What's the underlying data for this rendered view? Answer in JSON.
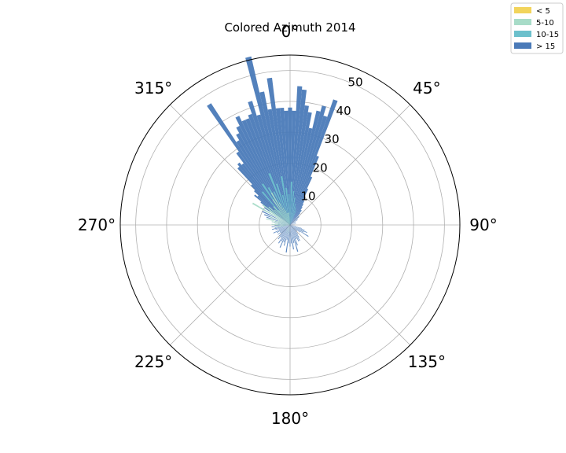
{
  "chart_data": {
    "type": "polar-bar",
    "title": "Colored Azimuth 2014",
    "theta_direction": "clockwise",
    "theta_zero": "N",
    "bin_width_deg": 2,
    "rlim": [
      0,
      55
    ],
    "angle_ticks": [
      {
        "deg": 0,
        "label": "0°"
      },
      {
        "deg": 45,
        "label": "45°"
      },
      {
        "deg": 90,
        "label": "90°"
      },
      {
        "deg": 135,
        "label": "135°"
      },
      {
        "deg": 180,
        "label": "180°"
      },
      {
        "deg": 225,
        "label": "225°"
      },
      {
        "deg": 270,
        "label": "270°"
      },
      {
        "deg": 315,
        "label": "315°"
      }
    ],
    "radial_ticks": [
      10,
      20,
      30,
      40,
      50
    ],
    "grid": true,
    "legend": {
      "placement": "top-right",
      "entries": [
        {
          "label": "< 5",
          "color": "#f2d45c"
        },
        {
          "label": "5-10",
          "color": "#a8dcc8"
        },
        {
          "label": "10-15",
          "color": "#6cc0cc"
        },
        {
          "label": "> 15",
          "color": "#4a7ab8"
        }
      ]
    },
    "series": [
      {
        "name": "5-10",
        "color": "#a8dcc8",
        "points": [
          [
            300,
            14
          ],
          [
            304,
            8
          ],
          [
            306,
            11
          ],
          [
            310,
            9
          ],
          [
            314,
            7
          ],
          [
            318,
            8
          ],
          [
            322,
            6
          ],
          [
            326,
            10
          ],
          [
            330,
            12
          ],
          [
            334,
            8
          ],
          [
            338,
            6
          ],
          [
            342,
            5
          ],
          [
            346,
            4
          ],
          [
            350,
            4
          ],
          [
            354,
            4
          ],
          [
            260,
            4
          ],
          [
            264,
            5
          ],
          [
            268,
            3
          ],
          [
            272,
            6
          ],
          [
            276,
            5
          ],
          [
            280,
            6
          ],
          [
            284,
            8
          ],
          [
            288,
            4
          ],
          [
            292,
            7
          ],
          [
            296,
            5
          ],
          [
            190,
            3
          ],
          [
            196,
            2
          ],
          [
            206,
            3
          ],
          [
            216,
            2
          ]
        ]
      },
      {
        "name": "10-15",
        "color": "#6cc0cc",
        "points": [
          [
            320,
            14
          ],
          [
            326,
            16
          ],
          [
            330,
            14
          ],
          [
            334,
            12
          ],
          [
            338,
            18
          ],
          [
            342,
            14
          ],
          [
            346,
            10
          ],
          [
            350,
            16
          ],
          [
            354,
            12
          ],
          [
            358,
            10
          ],
          [
            2,
            14
          ],
          [
            6,
            11
          ],
          [
            10,
            9
          ],
          [
            14,
            7
          ],
          [
            18,
            6
          ],
          [
            22,
            5
          ]
        ]
      },
      {
        "name": "> 15",
        "color": "#4a7ab8",
        "points": [
          [
            314,
            16
          ],
          [
            316,
            18
          ],
          [
            318,
            25
          ],
          [
            320,
            26
          ],
          [
            322,
            25
          ],
          [
            324,
            29
          ],
          [
            326,
            47
          ],
          [
            328,
            32
          ],
          [
            330,
            34
          ],
          [
            332,
            36
          ],
          [
            334,
            39
          ],
          [
            336,
            37
          ],
          [
            338,
            37
          ],
          [
            340,
            38
          ],
          [
            342,
            42
          ],
          [
            344,
            37
          ],
          [
            346,
            56
          ],
          [
            348,
            44
          ],
          [
            350,
            38
          ],
          [
            352,
            48
          ],
          [
            354,
            38
          ],
          [
            356,
            38
          ],
          [
            358,
            37
          ],
          [
            0,
            38
          ],
          [
            2,
            37
          ],
          [
            4,
            45
          ],
          [
            6,
            44
          ],
          [
            8,
            39
          ],
          [
            10,
            37
          ],
          [
            12,
            32
          ],
          [
            14,
            38
          ],
          [
            16,
            40
          ],
          [
            18,
            37
          ],
          [
            20,
            43
          ],
          [
            22,
            24
          ],
          [
            24,
            17
          ],
          [
            26,
            13
          ],
          [
            28,
            10
          ],
          [
            30,
            9
          ],
          [
            32,
            8
          ],
          [
            34,
            7
          ],
          [
            36,
            6
          ],
          [
            38,
            6
          ],
          [
            40,
            5
          ],
          [
            44,
            4
          ],
          [
            48,
            4
          ],
          [
            52,
            3
          ],
          [
            56,
            3
          ],
          [
            60,
            2
          ],
          [
            66,
            2
          ],
          [
            72,
            2
          ],
          [
            80,
            2
          ],
          [
            90,
            1
          ],
          [
            100,
            2
          ],
          [
            106,
            4
          ],
          [
            110,
            5
          ],
          [
            114,
            6
          ],
          [
            118,
            5
          ],
          [
            122,
            7
          ],
          [
            126,
            4
          ],
          [
            130,
            3
          ],
          [
            136,
            3
          ],
          [
            140,
            4
          ],
          [
            144,
            5
          ],
          [
            148,
            6
          ],
          [
            152,
            6
          ],
          [
            156,
            5
          ],
          [
            160,
            7
          ],
          [
            164,
            9
          ],
          [
            168,
            6
          ],
          [
            172,
            8
          ],
          [
            176,
            6
          ],
          [
            180,
            7
          ],
          [
            184,
            6
          ],
          [
            188,
            9
          ],
          [
            192,
            5
          ],
          [
            196,
            7
          ],
          [
            200,
            6
          ],
          [
            204,
            8
          ],
          [
            208,
            6
          ],
          [
            212,
            7
          ],
          [
            216,
            5
          ],
          [
            220,
            6
          ],
          [
            224,
            5
          ],
          [
            228,
            4
          ],
          [
            232,
            5
          ],
          [
            236,
            4
          ],
          [
            240,
            5
          ],
          [
            244,
            6
          ],
          [
            248,
            4
          ],
          [
            252,
            5
          ],
          [
            256,
            6
          ],
          [
            260,
            5
          ],
          [
            264,
            6
          ],
          [
            268,
            5
          ],
          [
            272,
            4
          ],
          [
            276,
            5
          ],
          [
            280,
            6
          ],
          [
            284,
            5
          ],
          [
            288,
            8
          ],
          [
            292,
            9
          ],
          [
            296,
            10
          ],
          [
            300,
            11
          ],
          [
            304,
            10
          ],
          [
            308,
            12
          ],
          [
            310,
            15
          ],
          [
            312,
            14
          ]
        ]
      },
      {
        "name": "< 5",
        "color": "#f2d45c",
        "points": []
      }
    ]
  }
}
